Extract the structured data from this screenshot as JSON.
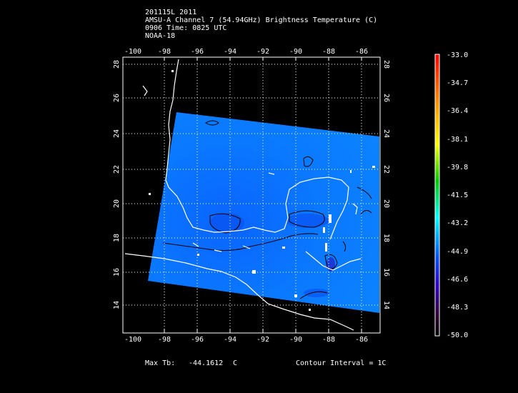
{
  "header": {
    "line1": "201115L 2011",
    "line2": "AMSU-A Channel 7 (54.94GHz) Brightness Temperature (C)",
    "line3": "0906 Time: 0825 UTC",
    "line4": "NOAA-18"
  },
  "map": {
    "lon_ticks": [
      "-100",
      "-98",
      "-96",
      "-94",
      "-92",
      "-90",
      "-88",
      "-86"
    ],
    "lat_ticks": [
      "28",
      "26",
      "24",
      "22",
      "20",
      "18",
      "16",
      "14"
    ],
    "lon_range": [
      -100.5,
      -84.8
    ],
    "lat_range": [
      12.4,
      28.5
    ],
    "grid": true
  },
  "colorbar": {
    "labels": [
      "-33.0",
      "-34.7",
      "-36.4",
      "-38.1",
      "-39.8",
      "-41.5",
      "-43.2",
      "-44.9",
      "-46.6",
      "-48.3",
      "-50.0"
    ]
  },
  "footer": {
    "max_tb_label": "Max Tb:",
    "max_tb_value": "-44.1612",
    "max_tb_unit": "C",
    "contour_interval": "Contour Interval = 1C"
  }
}
